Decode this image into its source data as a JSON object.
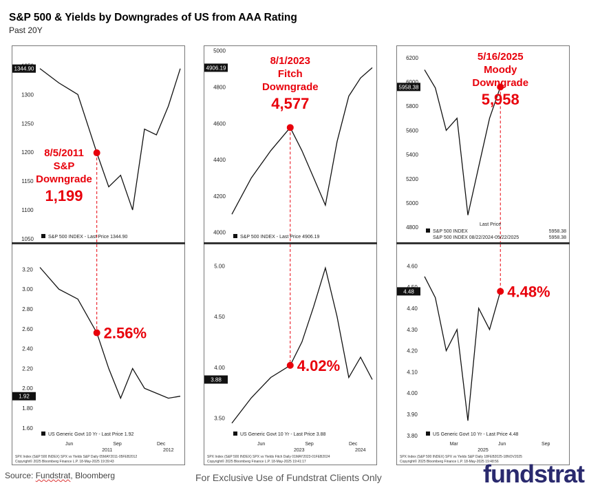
{
  "header": {
    "title": "S&P 500 & Yields by Downgrades of US from AAA Rating",
    "subtitle": "Past 20Y"
  },
  "footer": {
    "source_prefix": "Source: ",
    "source_fundstrat": "Fundstrat",
    "source_suffix": ", Bloomberg",
    "exclusive": "For Exclusive Use of Fundstrat Clients Only",
    "logo": "fundstrat"
  },
  "colors": {
    "line": "#111111",
    "marker": "#e8000b",
    "annotation": "#e8000b",
    "tag_bg": "#111111"
  },
  "chart_data": [
    {
      "type": "line",
      "panel": "left-top",
      "ylim": [
        1050,
        1360
      ],
      "yticks": [
        "1350",
        "1300",
        "1250",
        "1200",
        "1150",
        "1100",
        "1050"
      ],
      "last_tag": "1344.90",
      "legend": "S&P 500 INDEX - Last Price 1344.90",
      "series": [
        {
          "x": [
            "May 2011",
            "Jun 2011",
            "Jul 2011",
            "Aug 5 2011",
            "Aug 2011",
            "Sep 2011",
            "Oct 2011",
            "Nov 2011",
            "Dec 2011",
            "Jan 2012",
            "Feb 2012"
          ],
          "values": [
            1345,
            1320,
            1300,
            1199,
            1140,
            1160,
            1100,
            1240,
            1230,
            1280,
            1344.9
          ]
        }
      ],
      "marker": {
        "x": "Aug 5 2011",
        "value": 1199
      },
      "annotation": [
        "8/5/2011",
        "S&P",
        "Downgrade",
        "1,199"
      ]
    },
    {
      "type": "line",
      "panel": "left-bottom",
      "ylim": [
        1.55,
        3.3
      ],
      "yticks": [
        "3.20",
        "3.00",
        "2.80",
        "2.60",
        "2.40",
        "2.20",
        "2.00",
        "1.80",
        "1.60"
      ],
      "last_tag": "1.92",
      "legend": "US Generic Govt 10 Yr - Last Price 1.92",
      "xticks": [
        "Jun",
        "Sep",
        "Dec"
      ],
      "xyear_labels": [
        "2011",
        "2012"
      ],
      "series": [
        {
          "x": [
            "May 2011",
            "Jun 2011",
            "Jul 2011",
            "Aug 5 2011",
            "Aug 2011",
            "Sep 2011",
            "Oct 2011",
            "Nov 2011",
            "Dec 2011",
            "Jan 2012",
            "Feb 2012"
          ],
          "values": [
            3.22,
            3.0,
            2.9,
            2.56,
            2.2,
            1.9,
            2.2,
            2.0,
            1.95,
            1.9,
            1.92
          ]
        }
      ],
      "marker": {
        "x": "Aug 5 2011",
        "value": 2.56
      },
      "annotation": [
        "2.56%"
      ],
      "footnote": [
        "SPX Index (S&P 500 INDEX) SPX vs Yields S&P  Daily 05MAY2011-05FEB2012",
        "Copyright© 2025 Bloomberg Finance L.P.                    18-May-2025 19:39:43"
      ]
    },
    {
      "type": "line",
      "panel": "middle-top",
      "ylim": [
        3980,
        5010
      ],
      "yticks": [
        "5000",
        "4800",
        "4600",
        "4400",
        "4200",
        "4000"
      ],
      "last_tag": "4906.19",
      "legend": "S&P 500 INDEX - Last Price 4906.19",
      "series": [
        {
          "x": [
            "May 2023",
            "Jun 2023",
            "Jul 2023",
            "Aug 1 2023",
            "Aug 2023",
            "Sep 2023",
            "Oct 2023",
            "Nov 2023",
            "Dec 2023",
            "Jan 2024",
            "Feb 2024"
          ],
          "values": [
            4100,
            4300,
            4450,
            4577,
            4450,
            4300,
            4150,
            4500,
            4750,
            4850,
            4906.19
          ]
        }
      ],
      "marker": {
        "x": "Aug 1 2023",
        "value": 4577
      },
      "annotation": [
        "8/1/2023",
        "Fitch",
        "Downgrade",
        "4,577"
      ]
    },
    {
      "type": "line",
      "panel": "middle-bottom",
      "ylim": [
        3.3,
        5.05
      ],
      "yticks": [
        "5.00",
        "4.50",
        "4.00",
        "3.50"
      ],
      "last_tag": "3.88",
      "legend": "US Generic Govt 10 Yr - Last Price 3.88",
      "xticks": [
        "Jun",
        "Sep",
        "Dec"
      ],
      "xyear_labels": [
        "2023",
        "2024"
      ],
      "series": [
        {
          "x": [
            "May 2023",
            "Jun 2023",
            "Jul 2023",
            "Aug 1 2023",
            "Aug 2023",
            "Sep 2023",
            "Oct 2023",
            "Nov 2023",
            "Dec 2023",
            "Jan 2024",
            "Feb 2024"
          ],
          "values": [
            3.45,
            3.7,
            3.9,
            4.02,
            4.25,
            4.6,
            4.98,
            4.5,
            3.9,
            4.1,
            3.88
          ]
        }
      ],
      "marker": {
        "x": "Aug 1 2023",
        "value": 4.02
      },
      "annotation": [
        "4.02%"
      ],
      "footnote": [
        "SPX Index (S&P 500 INDEX) SPX vs Yields Fitch  Daily 01MAY2023-01FEB2024",
        "Copyright© 2025 Bloomberg Finance L.P.                    18-May-2025 19:41:17"
      ]
    },
    {
      "type": "line",
      "panel": "right-top",
      "ylim": [
        4750,
        6250
      ],
      "yticks": [
        "6200",
        "6000",
        "5800",
        "5600",
        "5400",
        "5200",
        "5000",
        "4800"
      ],
      "last_tag": "5958.38",
      "legend_title": "Last Price",
      "legend": [
        "S&P 500 INDEX",
        "5958.38",
        "S&P 500 INDEX 08/22/2024-05/22/2025",
        "5958.38"
      ],
      "series": [
        {
          "x": [
            "Feb 2025",
            "Feb 2025",
            "Mar 2025",
            "Mar 2025",
            "Apr 2025",
            "Apr 2025",
            "May 2025",
            "May 16 2025"
          ],
          "values": [
            6100,
            5950,
            5600,
            5700,
            4900,
            5300,
            5700,
            5958
          ]
        }
      ],
      "marker": {
        "x": "May 16 2025",
        "value": 5958
      },
      "annotation": [
        "5/16/2025",
        "Moody",
        "Downgrade",
        "5,958"
      ]
    },
    {
      "type": "line",
      "panel": "right-bottom",
      "ylim": [
        3.78,
        4.65
      ],
      "yticks": [
        "4.60",
        "4.50",
        "4.40",
        "4.30",
        "4.20",
        "4.10",
        "4.00",
        "3.90",
        "3.80"
      ],
      "last_tag": "4.48",
      "legend": "US Generic Govt 10 Yr - Last Price 4.48",
      "xticks": [
        "Mar",
        "Jun",
        "Sep"
      ],
      "xyear_labels": [
        "2025"
      ],
      "series": [
        {
          "x": [
            "Feb 2025",
            "Feb 2025",
            "Mar 2025",
            "Mar 2025",
            "Apr 2025",
            "Apr 2025",
            "May 2025",
            "May 16 2025"
          ],
          "values": [
            4.55,
            4.45,
            4.2,
            4.3,
            3.87,
            4.4,
            4.3,
            4.48
          ]
        }
      ],
      "marker": {
        "x": "May 16 2025",
        "value": 4.48
      },
      "annotation": [
        "4.48%"
      ],
      "footnote": [
        "SPX Index (S&P 500 INDEX) SPX vs Yields S&P  Daily 18FEB2025-18NOV2025",
        "Copyright© 2025 Bloomberg Finance L.P.                    18-May-2025 19:48:56"
      ]
    }
  ]
}
